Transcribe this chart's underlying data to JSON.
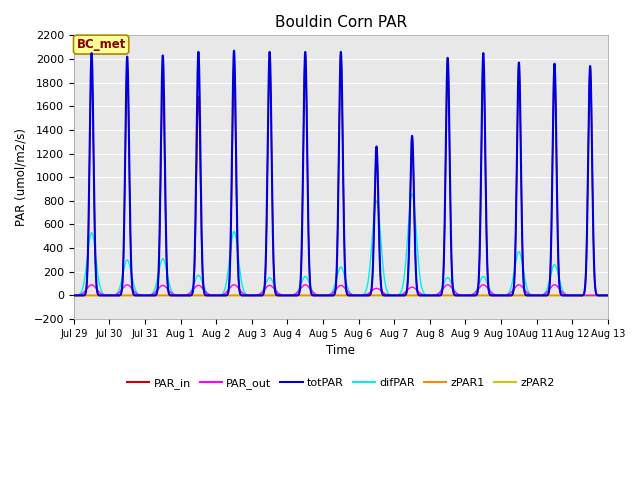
{
  "title": "Bouldin Corn PAR",
  "ylabel": "PAR (umol/m2/s)",
  "xlabel": "Time",
  "ylim": [
    -200,
    2200
  ],
  "yticks": [
    -200,
    0,
    200,
    400,
    600,
    800,
    1000,
    1200,
    1400,
    1600,
    1800,
    2000,
    2200
  ],
  "background_color": "#e8e8e8",
  "fig_background": "#ffffff",
  "legend_label": "BC_met",
  "series_names": [
    "PAR_in",
    "PAR_out",
    "totPAR",
    "difPAR",
    "zPAR1",
    "zPAR2"
  ],
  "series_colors": [
    "#cc0000",
    "#ff00ff",
    "#0000dd",
    "#00eeee",
    "#ff8800",
    "#cccc00"
  ],
  "series_linewidths": [
    1.0,
    1.0,
    1.5,
    1.0,
    1.0,
    1.5
  ],
  "xtick_labels": [
    "Jul 29",
    "Jul 30",
    "Jul 31",
    "Aug 1",
    "Aug 2",
    "Aug 3",
    "Aug 4",
    "Aug 5",
    "Aug 6",
    "Aug 7",
    "Aug 8",
    "Aug 9",
    "Aug 10",
    "Aug 11",
    "Aug 12",
    "Aug 13"
  ],
  "daily_peaks_totPAR": [
    2050,
    2020,
    2030,
    2060,
    2070,
    2060,
    2060,
    2060,
    1260,
    1350,
    2010,
    2050,
    1970,
    1960,
    1940
  ],
  "daily_peaks_PAR_in": [
    1950,
    1920,
    1800,
    1680,
    1870,
    2000,
    2040,
    2050,
    1250,
    1340,
    1980,
    1950,
    1960,
    1960,
    1940
  ],
  "daily_peaks_difPAR": [
    530,
    300,
    310,
    170,
    540,
    150,
    160,
    240,
    800,
    860,
    150,
    160,
    370,
    260,
    0
  ],
  "daily_peaks_PAR_out": [
    90,
    90,
    85,
    85,
    90,
    85,
    90,
    85,
    60,
    70,
    90,
    90,
    90,
    90,
    0
  ],
  "box_color": "#ffff99",
  "box_edge_color": "#aa8800",
  "box_text_color": "#880000"
}
